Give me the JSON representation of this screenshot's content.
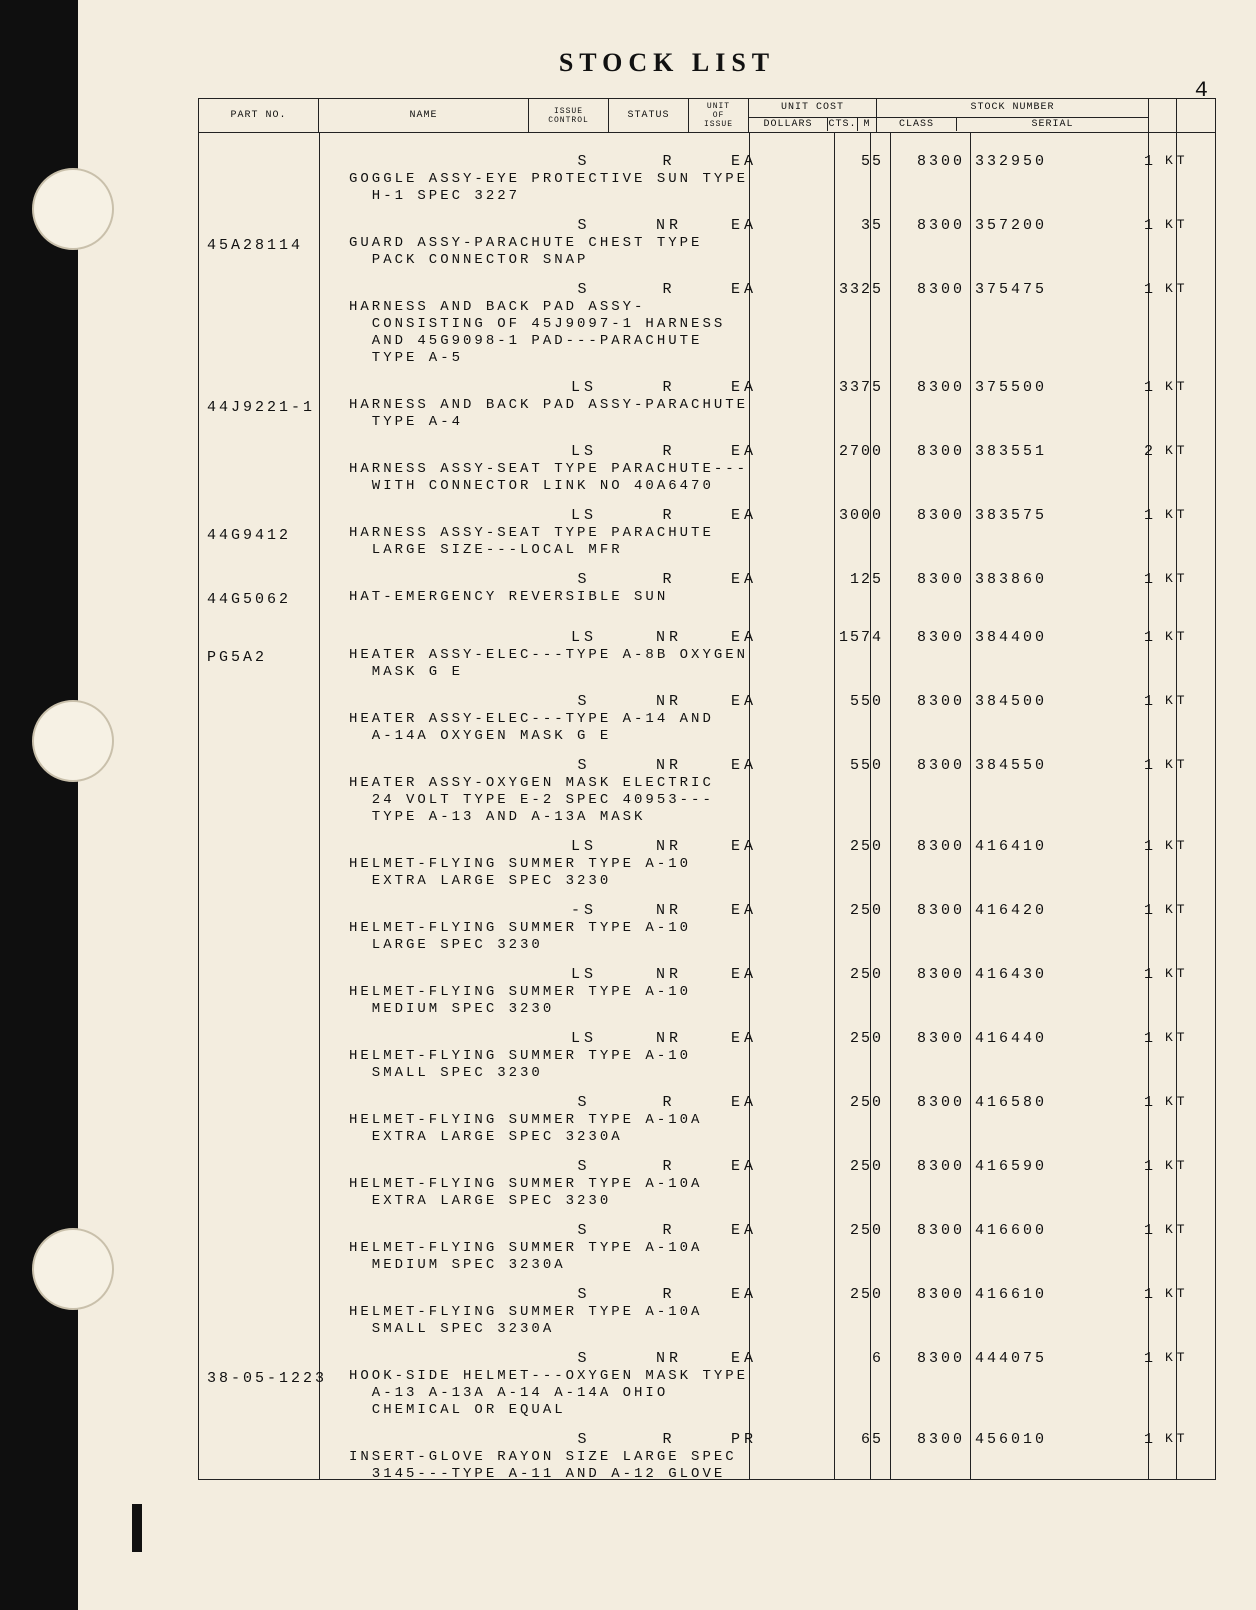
{
  "page": {
    "title": "STOCK LIST",
    "number": "4"
  },
  "colors": {
    "paper": "#f3eddf",
    "ink": "#111111",
    "rule": "#222222",
    "strip": "#0f0f0f"
  },
  "columns": {
    "part_no_w": 120,
    "name_w": 210,
    "issue_w": 80,
    "status_w": 80,
    "unit_of_issue_w": 60,
    "unit_cost_w": 130,
    "class_w": 80,
    "serial_w": 160,
    "tail1_w": 30,
    "tail2_w": 40
  },
  "header": {
    "part_no": "PART NO.",
    "name": "NAME",
    "issue": "ISSUE\nCONTROL",
    "status": "STATUS",
    "unit_of_issue": "UNIT\nOF\nISSUE",
    "unit_cost": "UNIT COST",
    "unit_cost_sub": [
      "DOLLARS",
      "CTS.",
      "M"
    ],
    "stock_number": "STOCK NUMBER",
    "stock_number_sub": [
      "CLASS",
      "SERIAL"
    ]
  },
  "rows": [
    {
      "part": "",
      "issue": "S",
      "status": "R",
      "unit": "EA",
      "cost": "55",
      "class": "8300",
      "serial": "332950",
      "q1": "1",
      "q2": "KT",
      "name": "GOGGLE ASSY-EYE PROTECTIVE SUN TYPE\n  H-1 SPEC 3227"
    },
    {
      "part": "45A28114",
      "issue": "S",
      "status": "NR",
      "unit": "EA",
      "cost": "35",
      "class": "8300",
      "serial": "357200",
      "q1": "1",
      "q2": "KT",
      "name": "GUARD ASSY-PARACHUTE CHEST TYPE\n  PACK CONNECTOR SNAP"
    },
    {
      "part": "",
      "issue": "S",
      "status": "R",
      "unit": "EA",
      "cost": "3325",
      "class": "8300",
      "serial": "375475",
      "q1": "1",
      "q2": "KT",
      "name": "HARNESS AND BACK PAD ASSY-\n  CONSISTING OF 45J9097-1 HARNESS\n  AND 45G9098-1 PAD---PARACHUTE\n  TYPE A-5"
    },
    {
      "part": "44J9221-1",
      "issue": "LS",
      "status": "R",
      "unit": "EA",
      "cost": "3375",
      "class": "8300",
      "serial": "375500",
      "q1": "1",
      "q2": "KT",
      "name": "HARNESS AND BACK PAD ASSY-PARACHUTE\n  TYPE A-4"
    },
    {
      "part": "",
      "issue": "LS",
      "status": "R",
      "unit": "EA",
      "cost": "2700",
      "class": "8300",
      "serial": "383551",
      "q1": "2",
      "q2": "KT",
      "name": "HARNESS ASSY-SEAT TYPE PARACHUTE---\n  WITH CONNECTOR LINK NO 40A6470"
    },
    {
      "part": "44G9412",
      "issue": "LS",
      "status": "R",
      "unit": "EA",
      "cost": "3000",
      "class": "8300",
      "serial": "383575",
      "q1": "1",
      "q2": "KT",
      "name": "HARNESS ASSY-SEAT TYPE PARACHUTE\n  LARGE SIZE---LOCAL MFR"
    },
    {
      "part": "44G5062",
      "issue": "S",
      "status": "R",
      "unit": "EA",
      "cost": "125",
      "class": "8300",
      "serial": "383860",
      "q1": "1",
      "q2": "KT",
      "name": "HAT-EMERGENCY REVERSIBLE SUN"
    },
    {
      "part": "PG5A2",
      "issue": "LS",
      "status": "NR",
      "unit": "EA",
      "cost": "1574",
      "class": "8300",
      "serial": "384400",
      "q1": "1",
      "q2": "KT",
      "name": "HEATER ASSY-ELEC---TYPE A-8B OXYGEN\n  MASK G E"
    },
    {
      "part": "",
      "issue": "S",
      "status": "NR",
      "unit": "EA",
      "cost": "550",
      "class": "8300",
      "serial": "384500",
      "q1": "1",
      "q2": "KT",
      "name": "HEATER ASSY-ELEC---TYPE A-14 AND\n  A-14A OXYGEN MASK G E"
    },
    {
      "part": "",
      "issue": "S",
      "status": "NR",
      "unit": "EA",
      "cost": "550",
      "class": "8300",
      "serial": "384550",
      "q1": "1",
      "q2": "KT",
      "name": "HEATER ASSY-OXYGEN MASK ELECTRIC\n  24 VOLT TYPE E-2 SPEC 40953---\n  TYPE A-13 AND A-13A MASK"
    },
    {
      "part": "",
      "issue": "LS",
      "status": "NR",
      "unit": "EA",
      "cost": "250",
      "class": "8300",
      "serial": "416410",
      "q1": "1",
      "q2": "KT",
      "name": "HELMET-FLYING SUMMER TYPE A-10\n  EXTRA LARGE SPEC 3230"
    },
    {
      "part": "",
      "issue": "-S",
      "status": "NR",
      "unit": "EA",
      "cost": "250",
      "class": "8300",
      "serial": "416420",
      "q1": "1",
      "q2": "KT",
      "name": "HELMET-FLYING SUMMER TYPE A-10\n  LARGE SPEC 3230"
    },
    {
      "part": "",
      "issue": "LS",
      "status": "NR",
      "unit": "EA",
      "cost": "250",
      "class": "8300",
      "serial": "416430",
      "q1": "1",
      "q2": "KT",
      "name": "HELMET-FLYING SUMMER TYPE A-10\n  MEDIUM SPEC 3230"
    },
    {
      "part": "",
      "issue": "LS",
      "status": "NR",
      "unit": "EA",
      "cost": "250",
      "class": "8300",
      "serial": "416440",
      "q1": "1",
      "q2": "KT",
      "name": "HELMET-FLYING SUMMER TYPE A-10\n  SMALL SPEC 3230"
    },
    {
      "part": "",
      "issue": "S",
      "status": "R",
      "unit": "EA",
      "cost": "250",
      "class": "8300",
      "serial": "416580",
      "q1": "1",
      "q2": "KT",
      "name": "HELMET-FLYING SUMMER TYPE A-10A\n  EXTRA LARGE SPEC 3230A"
    },
    {
      "part": "",
      "issue": "S",
      "status": "R",
      "unit": "EA",
      "cost": "250",
      "class": "8300",
      "serial": "416590",
      "q1": "1",
      "q2": "KT",
      "name": "HELMET-FLYING SUMMER TYPE A-10A\n  EXTRA LARGE SPEC 3230"
    },
    {
      "part": "",
      "issue": "S",
      "status": "R",
      "unit": "EA",
      "cost": "250",
      "class": "8300",
      "serial": "416600",
      "q1": "1",
      "q2": "KT",
      "name": "HELMET-FLYING SUMMER TYPE A-10A\n  MEDIUM SPEC 3230A"
    },
    {
      "part": "",
      "issue": "S",
      "status": "R",
      "unit": "EA",
      "cost": "250",
      "class": "8300",
      "serial": "416610",
      "q1": "1",
      "q2": "KT",
      "name": "HELMET-FLYING SUMMER TYPE A-10A\n  SMALL SPEC 3230A"
    },
    {
      "part": "38-05-1223",
      "issue": "S",
      "status": "NR",
      "unit": "EA",
      "cost": "6",
      "class": "8300",
      "serial": "444075",
      "q1": "1",
      "q2": "KT",
      "name": "HOOK-SIDE HELMET---OXYGEN MASK TYPE\n  A-13 A-13A A-14 A-14A OHIO\n  CHEMICAL OR EQUAL"
    },
    {
      "part": "",
      "issue": "S",
      "status": "R",
      "unit": "PR",
      "cost": "65",
      "class": "8300",
      "serial": "456010",
      "q1": "1",
      "q2": "KT",
      "name": "INSERT-GLOVE RAYON SIZE LARGE SPEC\n  3145---TYPE A-11 AND A-12 GLOVE"
    }
  ]
}
